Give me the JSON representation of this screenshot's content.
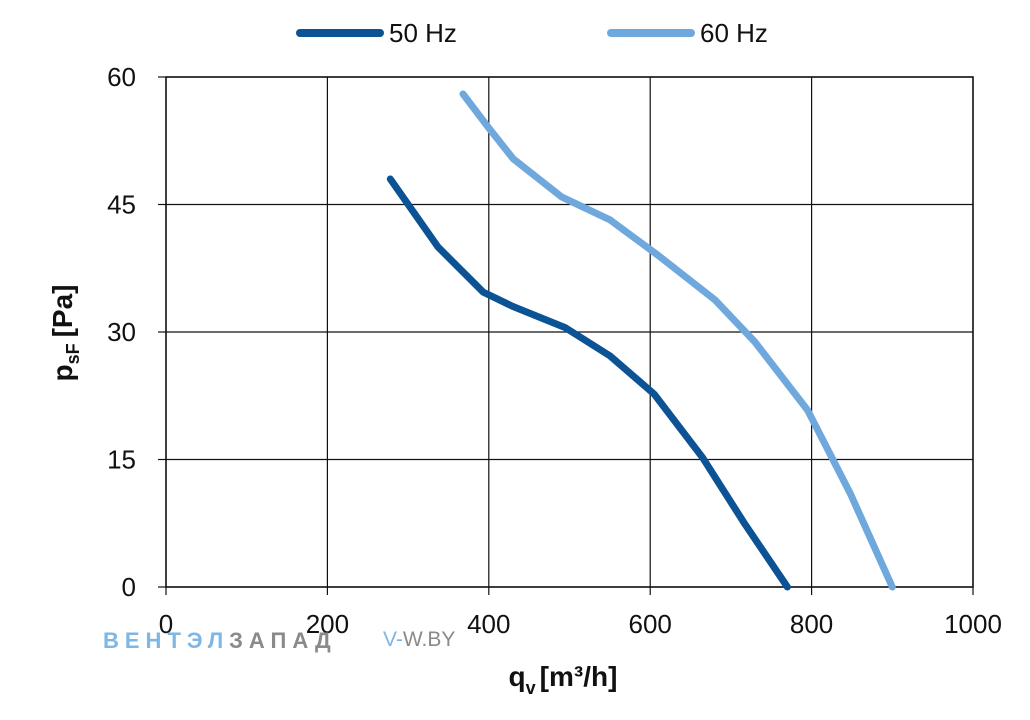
{
  "chart_data": {
    "type": "line",
    "xlabel": "q",
    "xlabel_sub": "v",
    "xlabel_unit": "[m³/h]",
    "ylabel": "p",
    "ylabel_sub": "sF",
    "ylabel_unit": "[Pa]",
    "xlim": [
      0,
      1000
    ],
    "ylim": [
      0,
      60
    ],
    "x_ticks": [
      0,
      200,
      400,
      600,
      800,
      1000
    ],
    "y_ticks": [
      0,
      15,
      30,
      45,
      60
    ],
    "grid": true,
    "legend_position": "top-center",
    "series": [
      {
        "name": "50 Hz",
        "color": "#0b5394",
        "points": [
          [
            278,
            48
          ],
          [
            337,
            40
          ],
          [
            393,
            34.7
          ],
          [
            430,
            33
          ],
          [
            495,
            30.5
          ],
          [
            550,
            27.2
          ],
          [
            605,
            22.7
          ],
          [
            665,
            15.2
          ],
          [
            716,
            7.6
          ],
          [
            770,
            0
          ]
        ]
      },
      {
        "name": "60 Hz",
        "color": "#6fa8dc",
        "points": [
          [
            368,
            58
          ],
          [
            400,
            54
          ],
          [
            430,
            50.4
          ],
          [
            490,
            45.9
          ],
          [
            550,
            43.2
          ],
          [
            610,
            39
          ],
          [
            680,
            33.8
          ],
          [
            730,
            28.8
          ],
          [
            795,
            20.8
          ],
          [
            848,
            11
          ],
          [
            900,
            0
          ]
        ]
      }
    ]
  },
  "watermark": {
    "brand_part1": "ВЕНТЭЛ",
    "brand_part2": "ЗАПАД",
    "url_part1": "V-",
    "url_part2": "W.BY",
    "color_light": "#7eb6e4",
    "color_dark": "#8a8a8a"
  }
}
